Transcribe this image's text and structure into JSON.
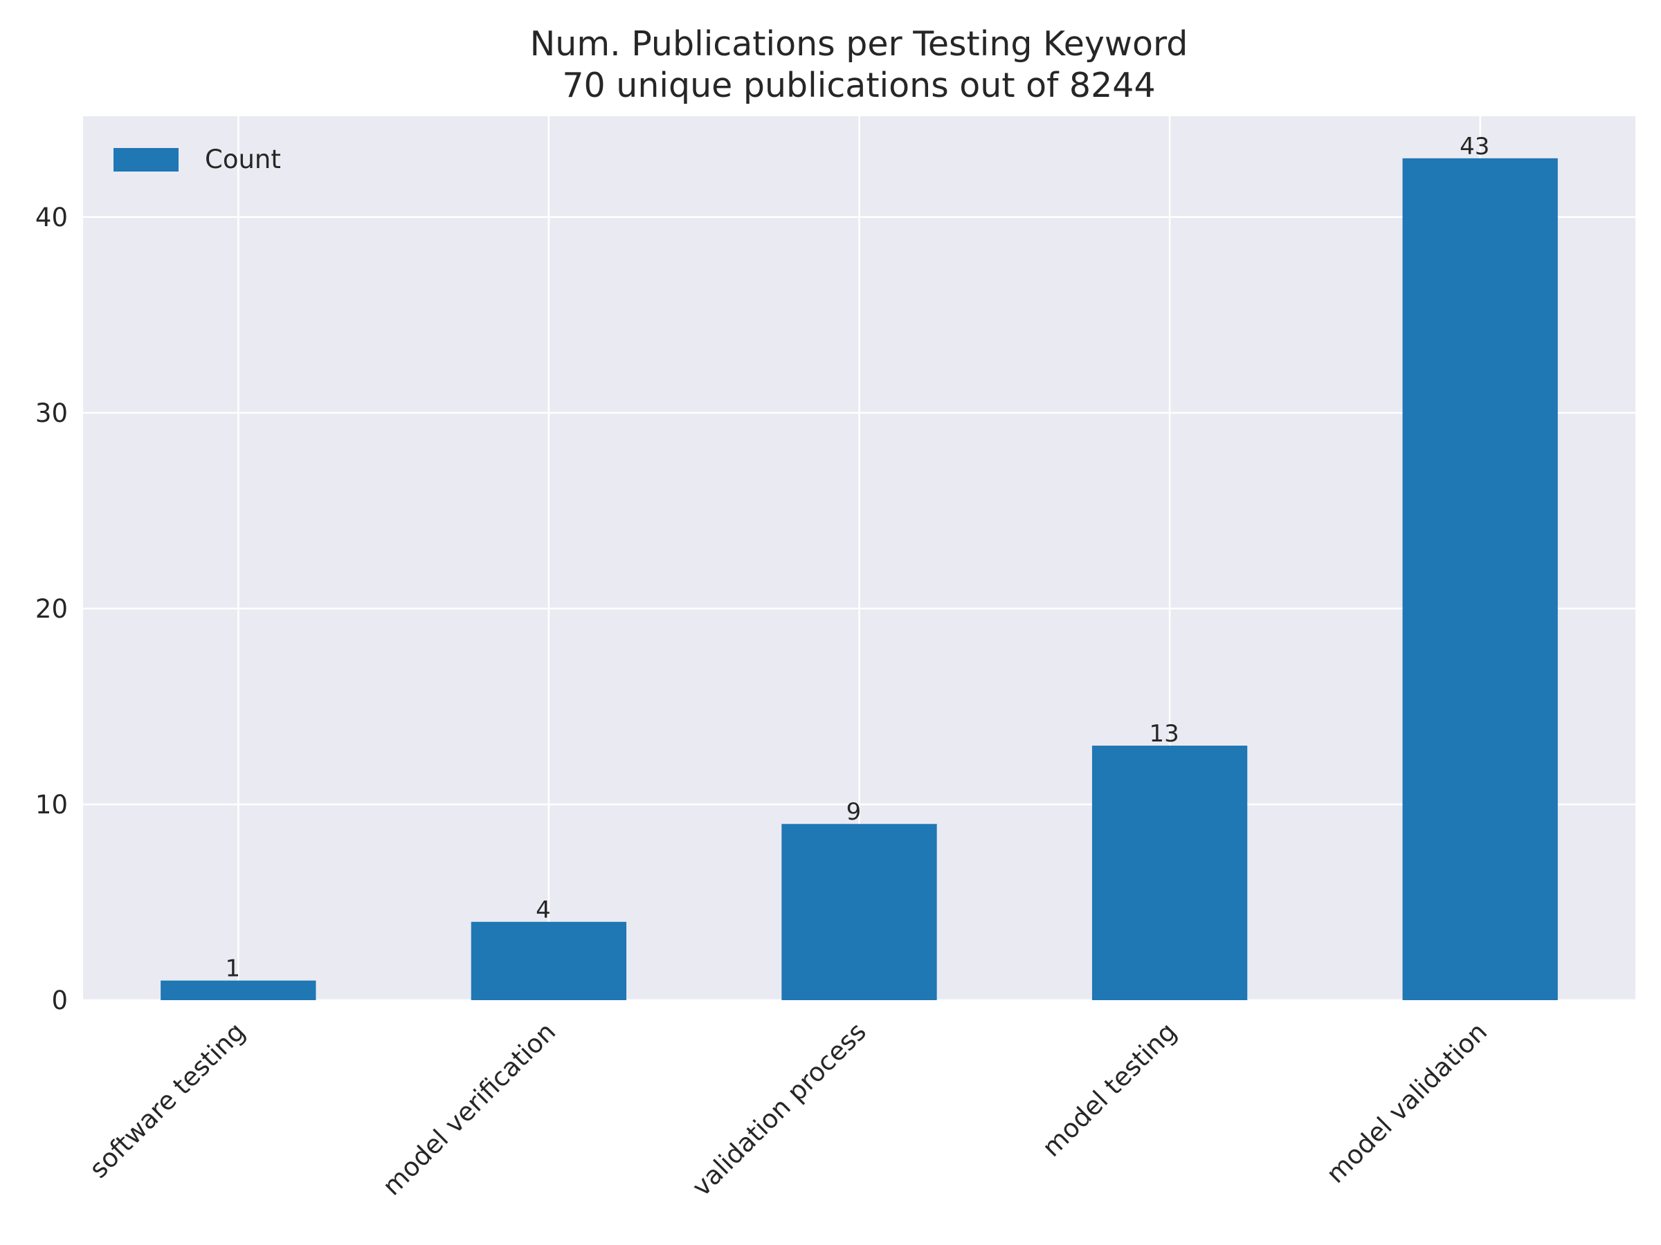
{
  "chart_data": {
    "type": "bar",
    "title": "Num. Publications per Testing Keyword",
    "subtitle": "70 unique publications out of 8244",
    "categories": [
      "software testing",
      "model verification",
      "validation process",
      "model testing",
      "model validation"
    ],
    "series": [
      {
        "name": "Count",
        "values": [
          1,
          4,
          9,
          13,
          43
        ]
      }
    ],
    "data_labels": [
      "1",
      "4",
      "9",
      "13",
      "43"
    ],
    "yticks": [
      0,
      10,
      20,
      30,
      40
    ],
    "ylim": [
      0,
      45.15
    ],
    "xlabel": "",
    "ylabel": "",
    "grid": true,
    "legend_position": "top-left",
    "colors": {
      "bar": "#1f77b4",
      "plot_background": "#eaeaf2",
      "grid": "#ffffff"
    }
  }
}
